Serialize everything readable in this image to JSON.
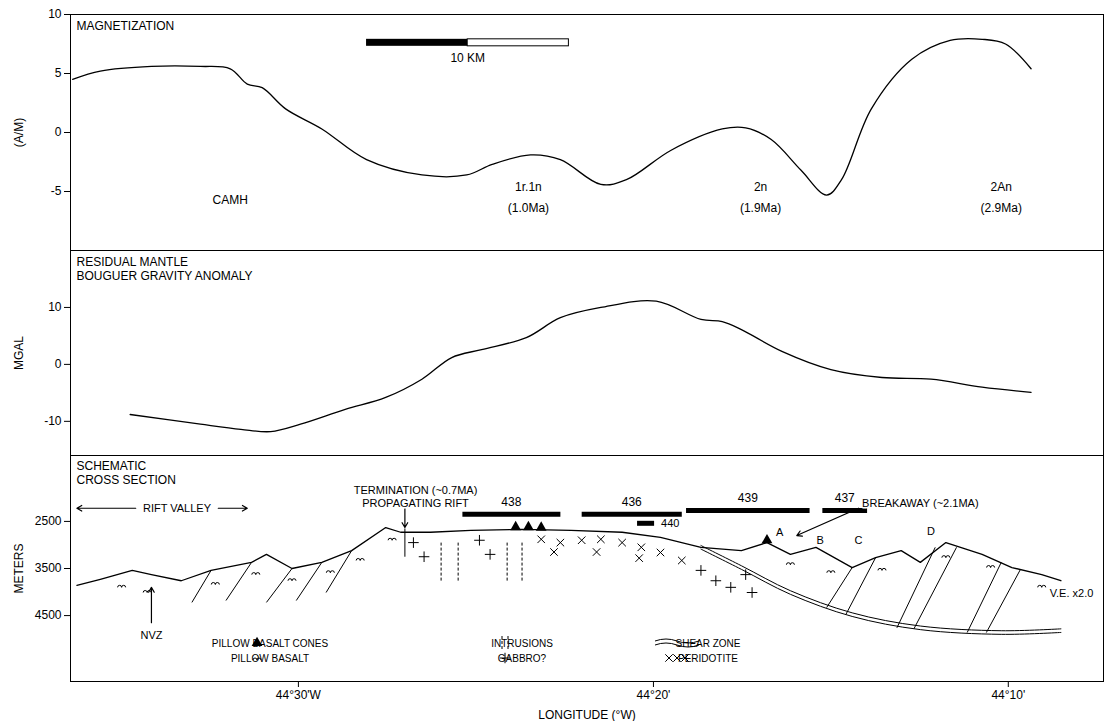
{
  "x_axis": {
    "label": "LONGITUDE (°W)",
    "xlim": [
      44.607,
      44.122
    ],
    "xticks": [
      {
        "value": 44.5,
        "label": "44°30'W"
      },
      {
        "value": 44.3333,
        "label": "44°20'"
      },
      {
        "value": 44.1667,
        "label": "44°10'"
      }
    ]
  },
  "chart_data": [
    {
      "type": "line",
      "title": [
        "MAGNETIZATION"
      ],
      "ylabel": "(A/M)",
      "ylim": [
        -10,
        10
      ],
      "yticks": [
        -5,
        0,
        5,
        10
      ],
      "tick_labels": "y",
      "color": "#000000",
      "x": [
        44.606,
        44.593,
        44.569,
        44.546,
        44.532,
        44.524,
        44.517,
        44.506,
        44.489,
        44.468,
        44.442,
        44.421,
        44.409,
        44.391,
        44.377,
        44.358,
        44.346,
        44.325,
        44.301,
        44.29,
        44.278,
        44.264,
        44.252,
        44.245,
        44.231,
        44.212,
        44.194,
        44.179,
        44.168,
        44.156
      ],
      "values": [
        4.5,
        5.2,
        5.6,
        5.6,
        5.4,
        4.1,
        3.8,
        2.0,
        0.3,
        -2.3,
        -3.6,
        -3.6,
        -2.7,
        -1.9,
        -2.3,
        -4.4,
        -4.0,
        -1.5,
        0.3,
        0.4,
        -0.6,
        -3.2,
        -5.3,
        -4.0,
        2.0,
        6.2,
        7.8,
        7.9,
        7.5,
        5.4
      ],
      "annotations": [
        {
          "text": [
            "CAMH"
          ],
          "x": 44.532,
          "y": -5.5
        },
        {
          "text": [
            "1r.1n",
            "(1.0Ma)"
          ],
          "x": 44.392,
          "y": -5.3
        },
        {
          "text": [
            "2n",
            "(1.9Ma)"
          ],
          "x": 44.283,
          "y": -5.3
        },
        {
          "text": [
            "2An",
            "(2.9Ma)"
          ],
          "x": 44.17,
          "y": -5.3
        }
      ],
      "scale_bar": {
        "label": "10 KM",
        "x": [
          44.468,
          44.373
        ],
        "y": 7.6
      }
    },
    {
      "type": "line",
      "title": [
        "RESIDUAL MANTLE",
        "BOUGUER GRAVITY ANOMALY"
      ],
      "ylabel": "MGAL",
      "ylim": [
        -16,
        20
      ],
      "yticks": [
        -10,
        0,
        10
      ],
      "tick_labels": "y",
      "color": "#000000",
      "x": [
        44.579,
        44.546,
        44.527,
        44.513,
        44.499,
        44.478,
        44.459,
        44.442,
        44.428,
        44.414,
        44.393,
        44.377,
        44.358,
        44.332,
        44.311,
        44.301,
        44.292,
        44.273,
        44.25,
        44.226,
        44.203,
        44.179,
        44.156
      ],
      "values": [
        -8.8,
        -10.5,
        -11.4,
        -11.8,
        -10.5,
        -7.9,
        -5.8,
        -2.6,
        1.2,
        2.6,
        4.7,
        8.2,
        10.0,
        11.1,
        7.9,
        7.5,
        6.1,
        2.3,
        -0.9,
        -2.3,
        -2.6,
        -4.0,
        -4.9
      ]
    }
  ],
  "cross_section": {
    "title": [
      "SCHEMATIC",
      "CROSS SECTION"
    ],
    "ylabel": "METERS",
    "ylim": [
      5900,
      1100
    ],
    "yticks": [
      2500,
      3500,
      4500
    ],
    "seafloor": {
      "x": [
        44.604,
        44.593,
        44.578,
        44.569,
        44.555,
        44.541,
        44.522,
        44.515,
        44.503,
        44.489,
        44.475,
        44.459,
        44.452,
        44.438,
        44.419,
        44.395,
        44.372,
        44.348,
        44.33,
        44.311,
        44.292,
        44.28,
        44.269,
        44.257,
        44.24,
        44.229,
        44.217,
        44.208,
        44.196,
        44.179,
        44.165,
        44.151,
        44.142
      ],
      "y": [
        3860,
        3730,
        3540,
        3630,
        3760,
        3540,
        3370,
        3200,
        3500,
        3370,
        3120,
        2630,
        2730,
        2730,
        2690,
        2670,
        2690,
        2730,
        2840,
        3050,
        3120,
        2950,
        3200,
        3050,
        3480,
        3270,
        3120,
        3370,
        2950,
        3200,
        3480,
        3630,
        3760
      ]
    },
    "faults": [
      [
        [
          44.45,
          2650
        ],
        [
          44.45,
          3250
        ]
      ],
      [
        [
          44.24,
          3480
        ],
        [
          44.252,
          4330
        ]
      ],
      [
        [
          44.229,
          3270
        ],
        [
          44.243,
          4480
        ]
      ],
      [
        [
          44.201,
          3050
        ],
        [
          44.219,
          4760
        ]
      ],
      [
        [
          44.191,
          3050
        ],
        [
          44.211,
          4780
        ]
      ],
      [
        [
          44.17,
          3370
        ],
        [
          44.186,
          4860
        ]
      ],
      [
        [
          44.161,
          3520
        ],
        [
          44.177,
          4860
        ]
      ],
      [
        [
          44.541,
          3540
        ],
        [
          44.55,
          4220
        ]
      ],
      [
        [
          44.522,
          3370
        ],
        [
          44.534,
          4180
        ]
      ],
      [
        [
          44.503,
          3500
        ],
        [
          44.515,
          4220
        ]
      ],
      [
        [
          44.489,
          3370
        ],
        [
          44.501,
          4180
        ]
      ],
      [
        [
          44.475,
          3120
        ],
        [
          44.487,
          4010
        ]
      ]
    ],
    "layers": [
      {
        "name": "PILLOW BASALT CONES",
        "marker": "triangle",
        "points": [
          [
            44.398,
            2620
          ],
          [
            44.392,
            2620
          ],
          [
            44.386,
            2630
          ],
          [
            44.28,
            2900
          ]
        ]
      },
      {
        "name": "PILLOW BASALT",
        "marker": "pillow",
        "points": [
          [
            44.583,
            3900
          ],
          [
            44.571,
            4010
          ],
          [
            44.539,
            3840
          ],
          [
            44.52,
            3630
          ],
          [
            44.503,
            3760
          ],
          [
            44.485,
            3590
          ],
          [
            44.471,
            3330
          ],
          [
            44.456,
            2900
          ],
          [
            44.269,
            3420
          ],
          [
            44.25,
            3590
          ],
          [
            44.226,
            3540
          ],
          [
            44.196,
            3270
          ],
          [
            44.175,
            3480
          ],
          [
            44.151,
            3900
          ]
        ]
      },
      {
        "name": "INTRUSIONS",
        "marker": "dashed_lines",
        "segments": [
          [
            [
              44.433,
              2950
            ],
            [
              44.433,
              3760
            ]
          ],
          [
            [
              44.425,
              2950
            ],
            [
              44.425,
              3760
            ]
          ],
          [
            [
              44.402,
              2950
            ],
            [
              44.402,
              3760
            ]
          ],
          [
            [
              44.395,
              2950
            ],
            [
              44.395,
              3760
            ]
          ]
        ]
      },
      {
        "name": "GABBRO?",
        "marker": "plus",
        "points": [
          [
            44.446,
            2950
          ],
          [
            44.441,
            3250
          ],
          [
            44.415,
            2900
          ],
          [
            44.41,
            3200
          ],
          [
            44.311,
            3540
          ],
          [
            44.304,
            3760
          ],
          [
            44.297,
            3900
          ],
          [
            44.287,
            4010
          ],
          [
            44.29,
            3630
          ]
        ]
      },
      {
        "name": "SHEAR ZONE",
        "marker": "double_line",
        "x": [
          44.311,
          44.292,
          44.269,
          44.24,
          44.208,
          44.17,
          44.142
        ],
        "y": [
          3050,
          3480,
          4010,
          4480,
          4760,
          4860,
          4820
        ]
      },
      {
        "name": "PERIDOTITE",
        "marker": "times",
        "points": [
          [
            44.386,
            2880
          ],
          [
            44.377,
            2950
          ],
          [
            44.367,
            2900
          ],
          [
            44.358,
            2880
          ],
          [
            44.348,
            2950
          ],
          [
            44.339,
            3050
          ],
          [
            44.33,
            3160
          ],
          [
            44.32,
            3330
          ],
          [
            44.38,
            3150
          ],
          [
            44.36,
            3150
          ],
          [
            44.34,
            3280
          ]
        ]
      }
    ],
    "legend": "bottom",
    "dives": [
      {
        "label": "438",
        "x": [
          44.423,
          44.377
        ],
        "y": 2350
      },
      {
        "label": "436",
        "x": [
          44.367,
          44.32
        ],
        "y": 2350
      },
      {
        "label": "440",
        "x": [
          44.341,
          44.333
        ],
        "y": 2540
      },
      {
        "label": "439",
        "x": [
          44.318,
          44.26
        ],
        "y": 2270
      },
      {
        "label": "437",
        "x": [
          44.254,
          44.233
        ],
        "y": 2270
      }
    ],
    "annotations": [
      {
        "text": [
          "RIFT VALLEY"
        ],
        "x": 44.557,
        "y": 2220,
        "span": [
          44.604,
          44.524
        ]
      },
      {
        "text": [
          "NVZ"
        ],
        "x": 44.569,
        "y": 4910,
        "arrow": [
          [
            44.569,
            4650
          ],
          [
            44.569,
            3900
          ]
        ]
      },
      {
        "text": [
          "TERMINATION (~0.7MA)",
          "PROPAGATING RIFT"
        ],
        "x": 44.445,
        "y": 1960,
        "arrow": [
          [
            44.45,
            2230
          ],
          [
            44.45,
            2630
          ]
        ]
      },
      {
        "text": [
          "BREAKAWAY (~2.1MA)"
        ],
        "x": 44.208,
        "y": 2100,
        "arrow": [
          [
            44.237,
            2220
          ],
          [
            44.266,
            2800
          ]
        ]
      },
      {
        "text": [
          "A"
        ],
        "x": 44.274,
        "y": 2730
      },
      {
        "text": [
          "B"
        ],
        "x": 44.255,
        "y": 2900
      },
      {
        "text": [
          "C"
        ],
        "x": 44.237,
        "y": 2880
      },
      {
        "text": [
          "D"
        ],
        "x": 44.203,
        "y": 2690
      },
      {
        "text": [
          "V.E. x2.0"
        ],
        "x": 44.137,
        "y": 4010
      }
    ]
  }
}
